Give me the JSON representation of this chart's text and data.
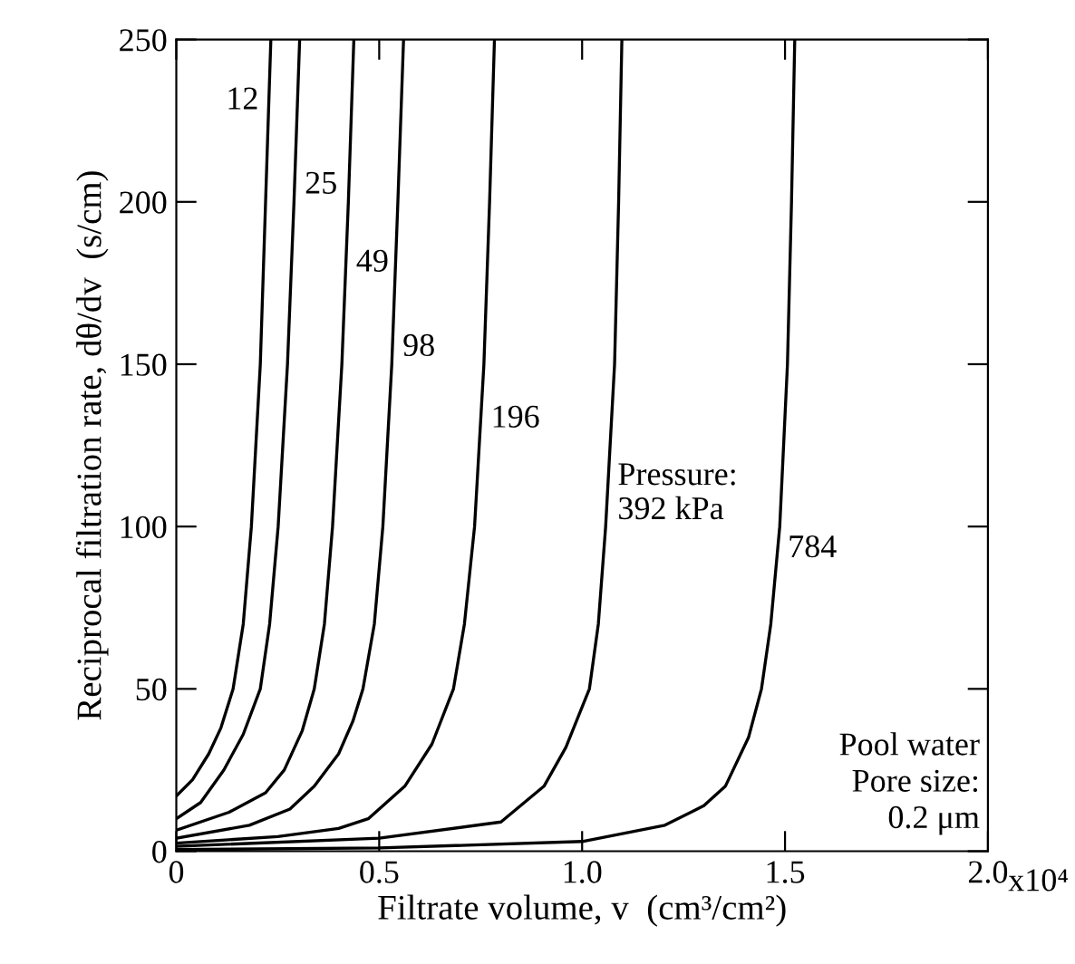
{
  "chart_data": {
    "type": "line",
    "xlabel": "Filtrate volume, v  (cm³/cm²)",
    "ylabel": "Reciprocal filtration rate, dθ/dv  (s/cm)",
    "xlim": [
      0,
      2.0
    ],
    "ylim": [
      0,
      250
    ],
    "xticks": [
      0,
      0.5,
      {
        "value": 1.0,
        "label": "1.0"
      },
      1.5,
      {
        "value": 2.0,
        "label": "2.0"
      }
    ],
    "yticks": [
      0,
      50,
      100,
      150,
      200,
      250
    ],
    "grid": false,
    "legend": false,
    "marker": "none",
    "line_style": "solid",
    "series": [
      {
        "name": "12",
        "color": "#000000",
        "x": [
          0,
          0.04,
          0.08,
          0.11,
          0.14,
          0.165,
          0.185,
          0.207,
          0.22,
          0.233
        ],
        "values": [
          17,
          22,
          30,
          38,
          50,
          70,
          100,
          150,
          200,
          250
        ]
      },
      {
        "name": "25",
        "color": "#000000",
        "x": [
          0,
          0.06,
          0.117,
          0.165,
          0.207,
          0.23,
          0.251,
          0.274,
          0.29,
          0.304
        ],
        "values": [
          10,
          15,
          25,
          36,
          50,
          70,
          100,
          150,
          200,
          250
        ]
      },
      {
        "name": "49",
        "color": "#000000",
        "x": [
          0,
          0.13,
          0.22,
          0.266,
          0.31,
          0.34,
          0.365,
          0.385,
          0.408,
          0.424,
          0.4375
        ],
        "values": [
          6.5,
          12,
          18,
          25,
          37,
          50,
          70,
          100,
          150,
          200,
          250
        ]
      },
      {
        "name": "98",
        "color": "#000000",
        "x": [
          0,
          0.18,
          0.28,
          0.34,
          0.4,
          0.435,
          0.46,
          0.488,
          0.509,
          0.531,
          0.546,
          0.56
        ],
        "values": [
          4,
          8,
          13,
          20,
          30,
          40,
          50,
          70,
          100,
          150,
          200,
          250
        ]
      },
      {
        "name": "196",
        "color": "#000000",
        "x": [
          0,
          0.25,
          0.4,
          0.473,
          0.563,
          0.63,
          0.683,
          0.71,
          0.735,
          0.758,
          0.772,
          0.784
        ],
        "values": [
          2.5,
          4.5,
          7,
          10,
          20,
          33,
          50,
          70,
          100,
          150,
          200,
          250
        ]
      },
      {
        "name": "Pressure:\n392 kPa",
        "color": "#000000",
        "x": [
          0,
          0.5,
          0.8,
          0.906,
          0.96,
          1.018,
          1.04,
          1.058,
          1.08,
          1.09,
          1.098
        ],
        "values": [
          1.5,
          4,
          9,
          20,
          32,
          50,
          70,
          100,
          150,
          200,
          250
        ]
      },
      {
        "name": "784",
        "color": "#000000",
        "x": [
          0,
          0.5,
          1.0,
          1.204,
          1.3,
          1.353,
          1.41,
          1.442,
          1.465,
          1.487,
          1.506,
          1.516,
          1.524
        ],
        "values": [
          0.5,
          1,
          3,
          8,
          14,
          20,
          35,
          50,
          70,
          100,
          150,
          200,
          250
        ]
      }
    ],
    "annotations": [
      "Pool water\nPore size:\n    0.2 μm",
      "x10⁴"
    ]
  }
}
